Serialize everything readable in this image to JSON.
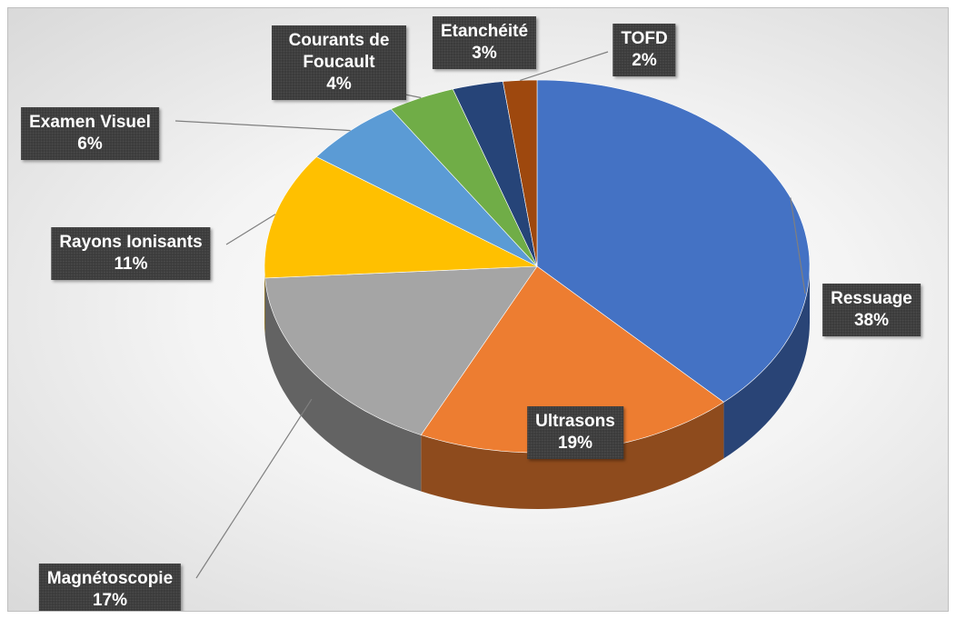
{
  "chart_data": {
    "type": "pie",
    "categories": [
      "Ressuage",
      "Ultrasons",
      "Magnétoscopie",
      "Rayons Ionisants",
      "Examen Visuel",
      "Courants de Foucault",
      "Etanchéité",
      "TOFD"
    ],
    "values": [
      38,
      19,
      17,
      11,
      6,
      4,
      3,
      2
    ],
    "value_labels": [
      "38%",
      "19%",
      "17%",
      "11%",
      "6%",
      "4%",
      "3%",
      "2%"
    ],
    "colors": [
      "#4472c4",
      "#ed7d31",
      "#a5a5a5",
      "#ffc000",
      "#5b9bd5",
      "#70ad47",
      "#264478",
      "#9e480e"
    ]
  }
}
